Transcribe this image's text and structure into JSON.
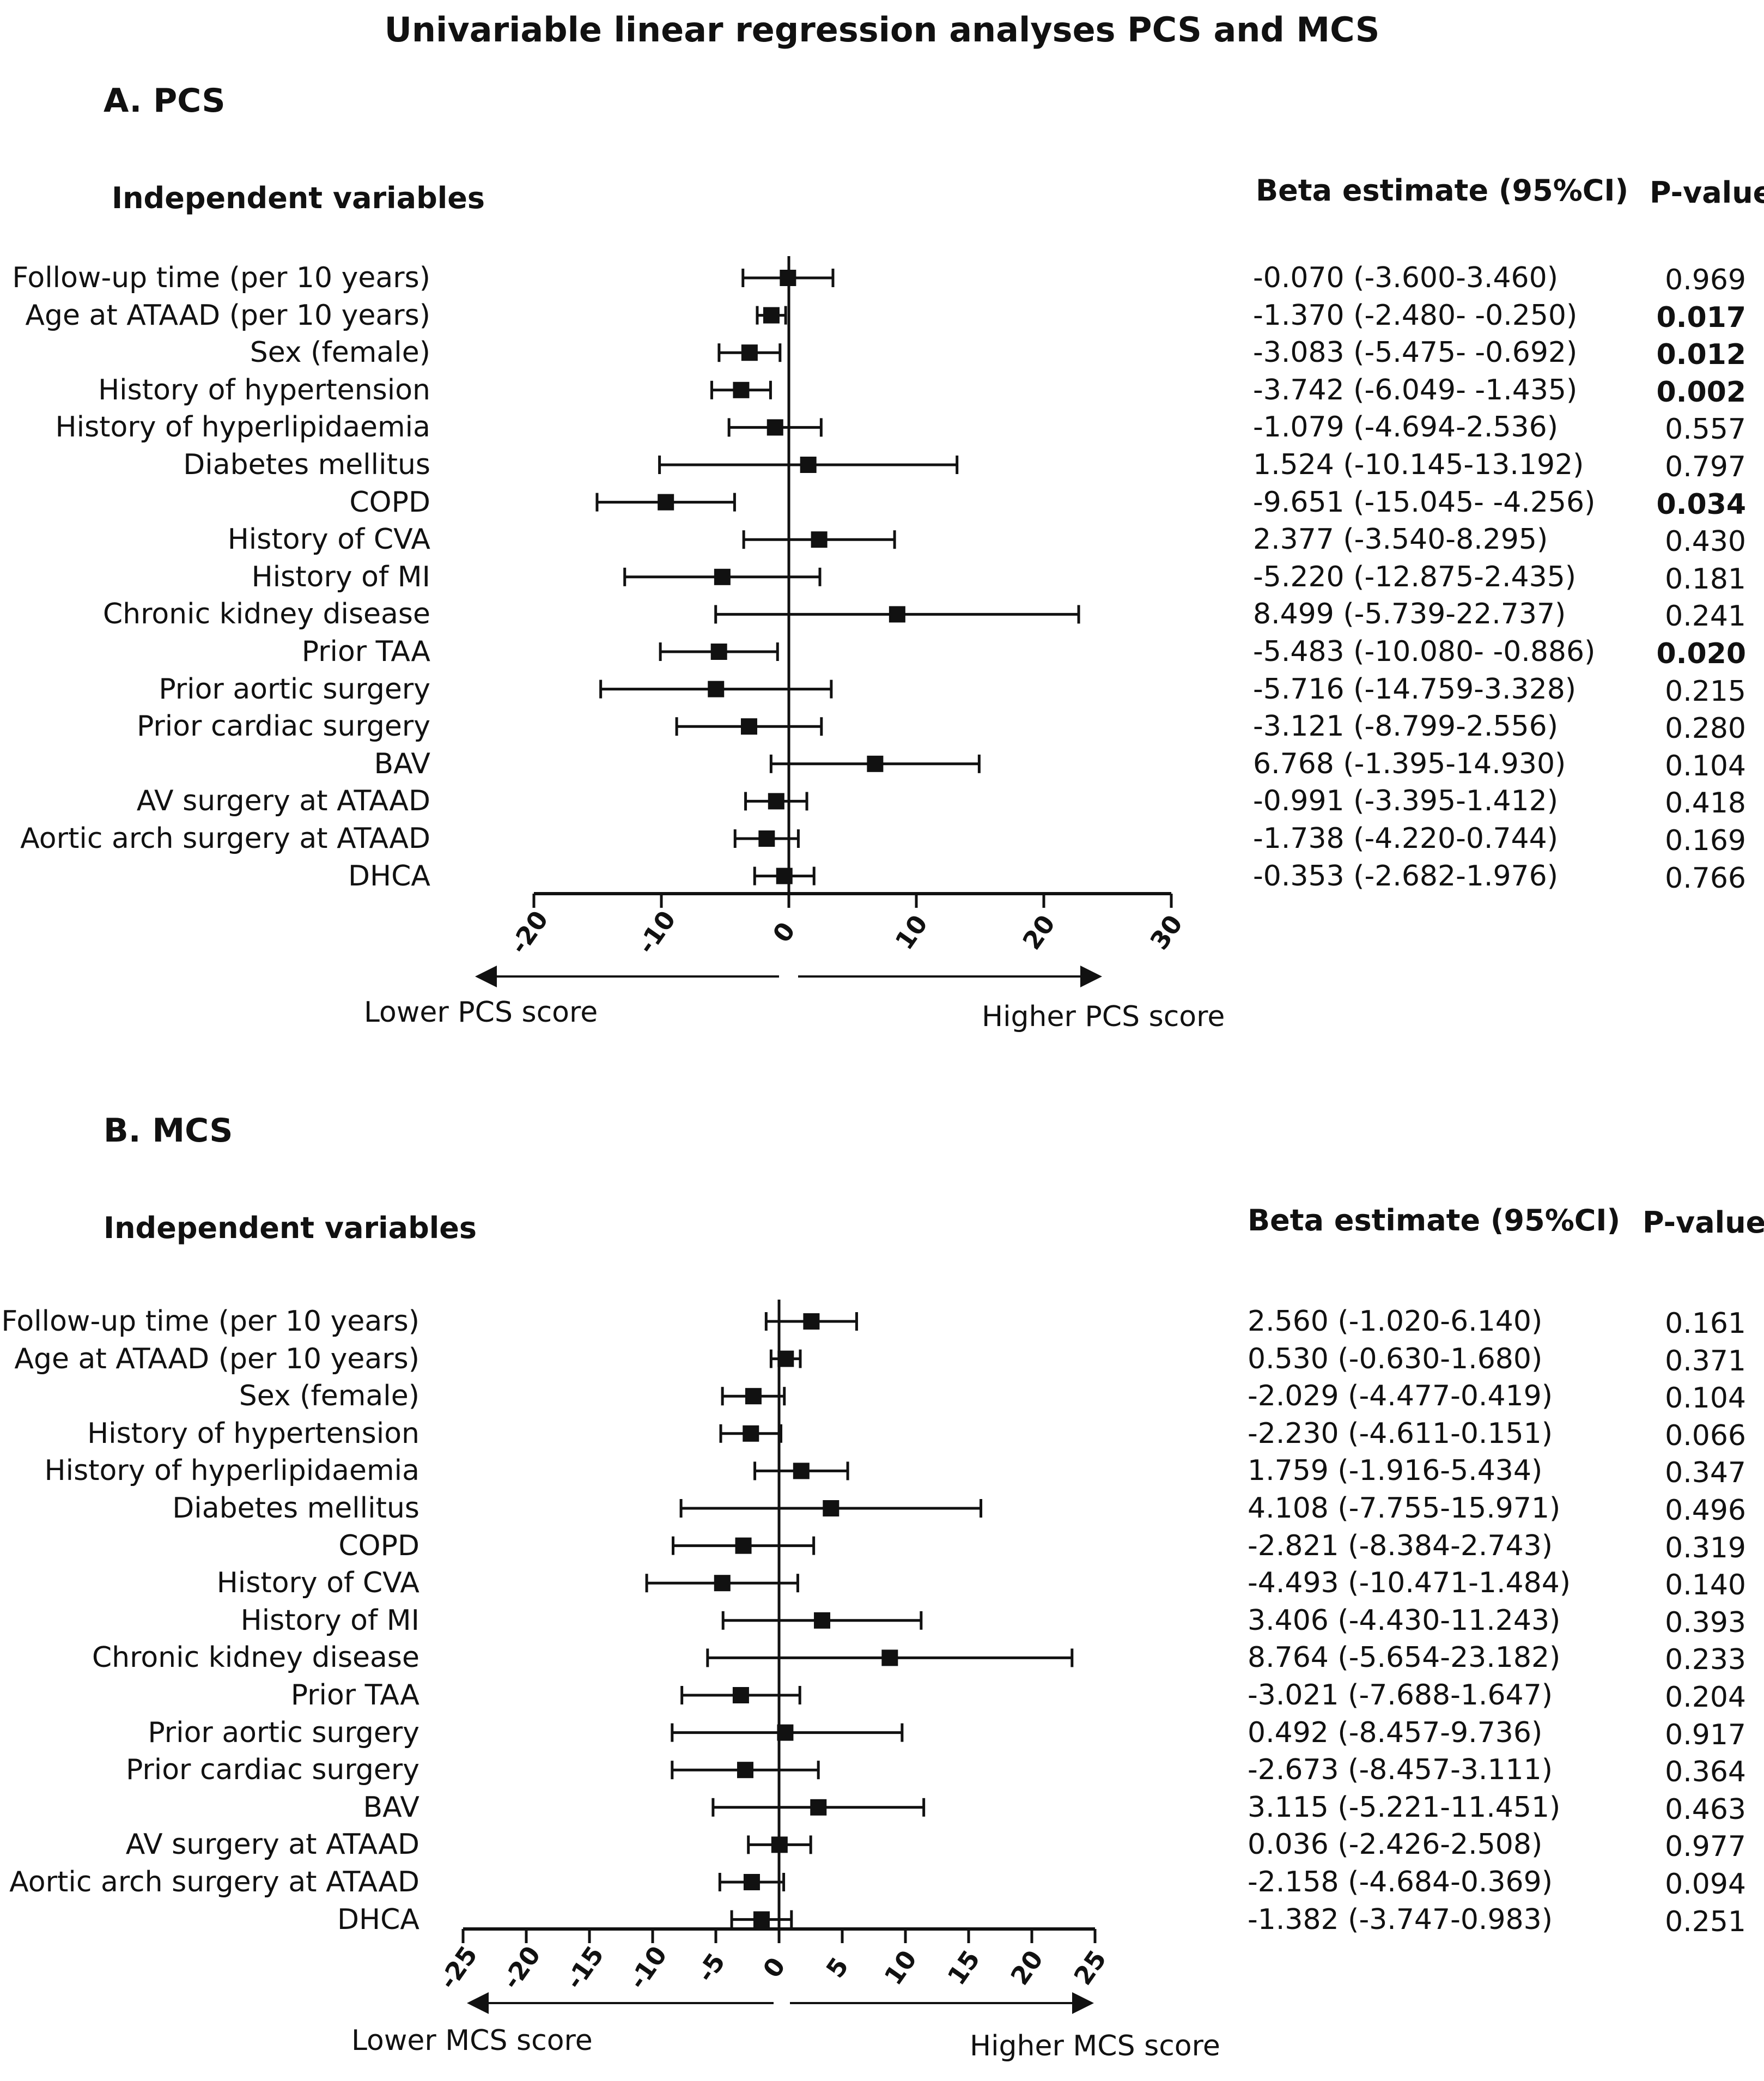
{
  "title": "Univariable linear regression analyses PCS and MCS",
  "chart_data": [
    {
      "type": "forest",
      "panel_title": "A. PCS",
      "variables_header": "Independent variables",
      "estimate_header": "Beta estimate (95%CI)",
      "pvalue_header": "P-value",
      "lower_label": "Lower PCS score",
      "higher_label": "Higher PCS score",
      "xlim": [
        -20,
        30
      ],
      "ticks": [
        "-20",
        "-10",
        "0",
        "10",
        "20",
        "30"
      ],
      "rows": [
        {
          "label": "Follow-up time (per 10 years)",
          "beta": -0.07,
          "lo": -3.6,
          "hi": 3.46,
          "text": "-0.070 (-3.600-3.460)",
          "p": "0.969",
          "bold": false
        },
        {
          "label": "Age at ATAAD (per 10 years)",
          "beta": -1.37,
          "lo": -2.48,
          "hi": -0.25,
          "text": "-1.370 (-2.480- -0.250)",
          "p": "0.017",
          "bold": true
        },
        {
          "label": "Sex (female)",
          "beta": -3.083,
          "lo": -5.475,
          "hi": -0.692,
          "text": "-3.083 (-5.475- -0.692)",
          "p": "0.012",
          "bold": true
        },
        {
          "label": "History of hypertension",
          "beta": -3.742,
          "lo": -6.049,
          "hi": -1.435,
          "text": "-3.742 (-6.049- -1.435)",
          "p": "0.002",
          "bold": true
        },
        {
          "label": "History of hyperlipidaemia",
          "beta": -1.079,
          "lo": -4.694,
          "hi": 2.536,
          "text": "-1.079 (-4.694-2.536)",
          "p": "0.557",
          "bold": false
        },
        {
          "label": "Diabetes mellitus",
          "beta": 1.524,
          "lo": -10.145,
          "hi": 13.192,
          "text": "1.524 (-10.145-13.192)",
          "p": "0.797",
          "bold": false
        },
        {
          "label": "COPD",
          "beta": -9.651,
          "lo": -15.045,
          "hi": -4.256,
          "text": "-9.651 (-15.045- -4.256)",
          "p": "0.034",
          "bold": true
        },
        {
          "label": "History of CVA",
          "beta": 2.377,
          "lo": -3.54,
          "hi": 8.295,
          "text": "2.377 (-3.540-8.295)",
          "p": "0.430",
          "bold": false
        },
        {
          "label": "History of MI",
          "beta": -5.22,
          "lo": -12.875,
          "hi": 2.435,
          "text": "-5.220 (-12.875-2.435)",
          "p": "0.181",
          "bold": false
        },
        {
          "label": "Chronic kidney disease",
          "beta": 8.499,
          "lo": -5.739,
          "hi": 22.737,
          "text": "8.499 (-5.739-22.737)",
          "p": "0.241",
          "bold": false
        },
        {
          "label": "Prior TAA",
          "beta": -5.483,
          "lo": -10.08,
          "hi": -0.886,
          "text": "-5.483 (-10.080- -0.886)",
          "p": "0.020",
          "bold": true
        },
        {
          "label": "Prior aortic surgery",
          "beta": -5.716,
          "lo": -14.759,
          "hi": 3.328,
          "text": "-5.716 (-14.759-3.328)",
          "p": "0.215",
          "bold": false
        },
        {
          "label": "Prior cardiac surgery",
          "beta": -3.121,
          "lo": -8.799,
          "hi": 2.556,
          "text": "-3.121 (-8.799-2.556)",
          "p": "0.280",
          "bold": false
        },
        {
          "label": "BAV",
          "beta": 6.768,
          "lo": -1.395,
          "hi": 14.93,
          "text": "6.768 (-1.395-14.930)",
          "p": "0.104",
          "bold": false
        },
        {
          "label": "AV surgery at ATAAD",
          "beta": -0.991,
          "lo": -3.395,
          "hi": 1.412,
          "text": "-0.991 (-3.395-1.412)",
          "p": "0.418",
          "bold": false
        },
        {
          "label": "Aortic arch surgery at ATAAD",
          "beta": -1.738,
          "lo": -4.22,
          "hi": 0.744,
          "text": "-1.738 (-4.220-0.744)",
          "p": "0.169",
          "bold": false
        },
        {
          "label": "DHCA",
          "beta": -0.353,
          "lo": -2.682,
          "hi": 1.976,
          "text": "-0.353 (-2.682-1.976)",
          "p": "0.766",
          "bold": false
        }
      ]
    },
    {
      "type": "forest",
      "panel_title": "B. MCS",
      "variables_header": "Independent variables",
      "estimate_header": "Beta estimate (95%CI)",
      "pvalue_header": "P-value",
      "lower_label": "Lower MCS score",
      "higher_label": "Higher MCS score",
      "xlim": [
        -25,
        25
      ],
      "ticks": [
        "-25",
        "-20",
        "-15",
        "-10",
        "-5",
        "0",
        "5",
        "10",
        "15",
        "20",
        "25"
      ],
      "rows": [
        {
          "label": "Follow-up time (per 10 years)",
          "beta": 2.56,
          "lo": -1.02,
          "hi": 6.14,
          "text": "2.560 (-1.020-6.140)",
          "p": "0.161",
          "bold": false
        },
        {
          "label": "Age at ATAAD (per 10 years)",
          "beta": 0.53,
          "lo": -0.63,
          "hi": 1.68,
          "text": "0.530 (-0.630-1.680)",
          "p": "0.371",
          "bold": false
        },
        {
          "label": "Sex (female)",
          "beta": -2.029,
          "lo": -4.477,
          "hi": 0.419,
          "text": "-2.029 (-4.477-0.419)",
          "p": "0.104",
          "bold": false
        },
        {
          "label": "History of hypertension",
          "beta": -2.23,
          "lo": -4.611,
          "hi": 0.151,
          "text": "-2.230 (-4.611-0.151)",
          "p": "0.066",
          "bold": false
        },
        {
          "label": "History of hyperlipidaemia",
          "beta": 1.759,
          "lo": -1.916,
          "hi": 5.434,
          "text": "1.759 (-1.916-5.434)",
          "p": "0.347",
          "bold": false
        },
        {
          "label": "Diabetes mellitus",
          "beta": 4.108,
          "lo": -7.755,
          "hi": 15.971,
          "text": "4.108 (-7.755-15.971)",
          "p": "0.496",
          "bold": false
        },
        {
          "label": "COPD",
          "beta": -2.821,
          "lo": -8.384,
          "hi": 2.743,
          "text": "-2.821 (-8.384-2.743)",
          "p": "0.319",
          "bold": false
        },
        {
          "label": "History of CVA",
          "beta": -4.493,
          "lo": -10.471,
          "hi": 1.484,
          "text": "-4.493 (-10.471-1.484)",
          "p": "0.140",
          "bold": false
        },
        {
          "label": "History of MI",
          "beta": 3.406,
          "lo": -4.43,
          "hi": 11.243,
          "text": "3.406 (-4.430-11.243)",
          "p": "0.393",
          "bold": false
        },
        {
          "label": "Chronic kidney disease",
          "beta": 8.764,
          "lo": -5.654,
          "hi": 23.182,
          "text": "8.764 (-5.654-23.182)",
          "p": "0.233",
          "bold": false
        },
        {
          "label": "Prior TAA",
          "beta": -3.021,
          "lo": -7.688,
          "hi": 1.647,
          "text": "-3.021 (-7.688-1.647)",
          "p": "0.204",
          "bold": false
        },
        {
          "label": "Prior aortic surgery",
          "beta": 0.492,
          "lo": -8.457,
          "hi": 9.736,
          "text": "0.492 (-8.457-9.736)",
          "p": "0.917",
          "bold": false
        },
        {
          "label": "Prior cardiac surgery",
          "beta": -2.673,
          "lo": -8.457,
          "hi": 3.111,
          "text": "-2.673 (-8.457-3.111)",
          "p": "0.364",
          "bold": false
        },
        {
          "label": "BAV",
          "beta": 3.115,
          "lo": -5.221,
          "hi": 11.451,
          "text": "3.115 (-5.221-11.451)",
          "p": "0.463",
          "bold": false
        },
        {
          "label": "AV surgery at ATAAD",
          "beta": 0.036,
          "lo": -2.426,
          "hi": 2.508,
          "text": "0.036 (-2.426-2.508)",
          "p": "0.977",
          "bold": false
        },
        {
          "label": "Aortic arch surgery at ATAAD",
          "beta": -2.158,
          "lo": -4.684,
          "hi": 0.369,
          "text": "-2.158 (-4.684-0.369)",
          "p": "0.094",
          "bold": false
        },
        {
          "label": "DHCA",
          "beta": -1.382,
          "lo": -3.747,
          "hi": 0.983,
          "text": "-1.382 (-3.747-0.983)",
          "p": "0.251",
          "bold": false
        }
      ]
    }
  ]
}
